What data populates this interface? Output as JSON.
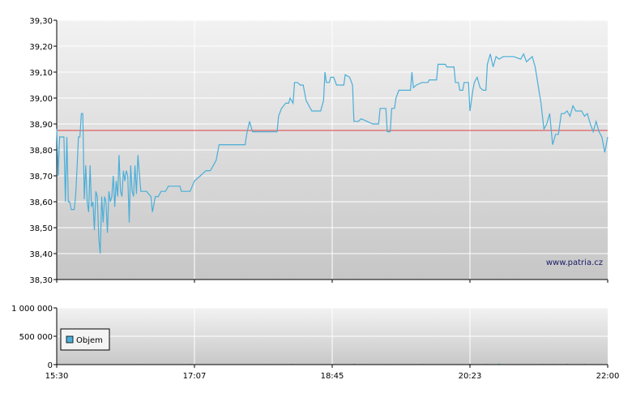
{
  "chart_data": [
    {
      "type": "line",
      "title": "",
      "xlabel": "",
      "ylabel": "",
      "ylim": [
        38.3,
        39.3
      ],
      "y_ticks": [
        "39,30",
        "39,20",
        "39,10",
        "39,00",
        "38,90",
        "38,80",
        "38,70",
        "38,60",
        "38,50",
        "38,40",
        "38,30"
      ],
      "x_ticks": [
        "15:30",
        "17:07",
        "18:45",
        "20:23",
        "22:00"
      ],
      "grid": true,
      "reference_line": {
        "value": 38.875,
        "color": "#e06060"
      },
      "watermark": "www.patria.cz",
      "series": [
        {
          "color": "#4aaed8",
          "points": [
            [
              0,
              38.88
            ],
            [
              1,
              38.7
            ],
            [
              2,
              38.85
            ],
            [
              3,
              38.85
            ],
            [
              5,
              38.85
            ],
            [
              6,
              38.6
            ],
            [
              7,
              38.85
            ],
            [
              8,
              38.6
            ],
            [
              9,
              38.6
            ],
            [
              10,
              38.57
            ],
            [
              12,
              38.57
            ],
            [
              13,
              38.62
            ],
            [
              14,
              38.73
            ],
            [
              15,
              38.85
            ],
            [
              16,
              38.85
            ],
            [
              17,
              38.94
            ],
            [
              18,
              38.94
            ],
            [
              19,
              38.61
            ],
            [
              20,
              38.74
            ],
            [
              21,
              38.6
            ],
            [
              22,
              38.56
            ],
            [
              23,
              38.74
            ],
            [
              24,
              38.58
            ],
            [
              25,
              38.6
            ],
            [
              26,
              38.49
            ],
            [
              27,
              38.64
            ],
            [
              28,
              38.62
            ],
            [
              29,
              38.46
            ],
            [
              30,
              38.4
            ],
            [
              31,
              38.62
            ],
            [
              32,
              38.52
            ],
            [
              33,
              38.62
            ],
            [
              34,
              38.6
            ],
            [
              35,
              38.48
            ],
            [
              36,
              38.64
            ],
            [
              37,
              38.6
            ],
            [
              38,
              38.62
            ],
            [
              39,
              38.7
            ],
            [
              40,
              38.58
            ],
            [
              41,
              38.68
            ],
            [
              42,
              38.62
            ],
            [
              43,
              38.78
            ],
            [
              44,
              38.64
            ],
            [
              45,
              38.62
            ],
            [
              46,
              38.72
            ],
            [
              47,
              38.68
            ],
            [
              48,
              38.72
            ],
            [
              49,
              38.7
            ],
            [
              50,
              38.52
            ],
            [
              51,
              38.74
            ],
            [
              52,
              38.64
            ],
            [
              53,
              38.62
            ],
            [
              54,
              38.74
            ],
            [
              55,
              38.63
            ],
            [
              56,
              38.78
            ],
            [
              58,
              38.64
            ],
            [
              62,
              38.64
            ],
            [
              65,
              38.62
            ],
            [
              66,
              38.56
            ],
            [
              68,
              38.62
            ],
            [
              70,
              38.62
            ],
            [
              72,
              38.64
            ],
            [
              75,
              38.64
            ],
            [
              77,
              38.66
            ],
            [
              85,
              38.66
            ],
            [
              86,
              38.64
            ],
            [
              92,
              38.64
            ],
            [
              95,
              38.68
            ],
            [
              99,
              38.7
            ],
            [
              103,
              38.72
            ],
            [
              106,
              38.72
            ],
            [
              110,
              38.76
            ],
            [
              112,
              38.82
            ],
            [
              130,
              38.82
            ],
            [
              131,
              38.86
            ],
            [
              133,
              38.91
            ],
            [
              135,
              38.87
            ],
            [
              152,
              38.87
            ],
            [
              153,
              38.93
            ],
            [
              155,
              38.96
            ],
            [
              158,
              38.98
            ],
            [
              160,
              38.98
            ],
            [
              161,
              39.0
            ],
            [
              163,
              38.98
            ],
            [
              164,
              39.06
            ],
            [
              166,
              39.06
            ],
            [
              168,
              39.05
            ],
            [
              170,
              39.05
            ],
            [
              172,
              38.99
            ],
            [
              176,
              38.95
            ],
            [
              182,
              38.95
            ],
            [
              184,
              38.99
            ],
            [
              185,
              39.1
            ],
            [
              186,
              39.06
            ],
            [
              188,
              39.06
            ],
            [
              189,
              39.08
            ],
            [
              191,
              39.08
            ],
            [
              193,
              39.05
            ],
            [
              198,
              39.05
            ],
            [
              199,
              39.09
            ],
            [
              202,
              39.08
            ],
            [
              204,
              39.05
            ],
            [
              205,
              38.91
            ],
            [
              208,
              38.91
            ],
            [
              210,
              38.92
            ],
            [
              214,
              38.91
            ],
            [
              218,
              38.9
            ],
            [
              222,
              38.9
            ],
            [
              223,
              38.96
            ],
            [
              227,
              38.96
            ],
            [
              228,
              38.87
            ],
            [
              230,
              38.87
            ],
            [
              231,
              38.96
            ],
            [
              233,
              38.96
            ],
            [
              234,
              39.0
            ],
            [
              236,
              39.03
            ],
            [
              244,
              39.03
            ],
            [
              245,
              39.1
            ],
            [
              246,
              39.04
            ],
            [
              248,
              39.05
            ],
            [
              252,
              39.06
            ],
            [
              256,
              39.06
            ],
            [
              257,
              39.07
            ],
            [
              262,
              39.07
            ],
            [
              263,
              39.13
            ],
            [
              268,
              39.13
            ],
            [
              269,
              39.12
            ],
            [
              274,
              39.12
            ],
            [
              275,
              39.06
            ],
            [
              277,
              39.06
            ],
            [
              278,
              39.03
            ],
            [
              280,
              39.03
            ],
            [
              281,
              39.06
            ],
            [
              284,
              39.06
            ],
            [
              285,
              38.95
            ],
            [
              287,
              39.03
            ],
            [
              288,
              39.06
            ],
            [
              290,
              39.08
            ],
            [
              292,
              39.04
            ],
            [
              294,
              39.03
            ],
            [
              296,
              39.03
            ],
            [
              297,
              39.13
            ],
            [
              299,
              39.17
            ],
            [
              301,
              39.12
            ],
            [
              303,
              39.16
            ],
            [
              305,
              39.15
            ],
            [
              308,
              39.16
            ],
            [
              312,
              39.16
            ],
            [
              315,
              39.16
            ],
            [
              320,
              39.15
            ],
            [
              322,
              39.17
            ],
            [
              324,
              39.14
            ],
            [
              326,
              39.15
            ],
            [
              328,
              39.16
            ],
            [
              330,
              39.12
            ],
            [
              332,
              39.05
            ],
            [
              334,
              38.98
            ],
            [
              336,
              38.88
            ],
            [
              338,
              38.9
            ],
            [
              340,
              38.94
            ],
            [
              342,
              38.82
            ],
            [
              344,
              38.86
            ],
            [
              346,
              38.86
            ],
            [
              348,
              38.94
            ],
            [
              350,
              38.94
            ],
            [
              352,
              38.95
            ],
            [
              354,
              38.93
            ],
            [
              356,
              38.97
            ],
            [
              358,
              38.95
            ],
            [
              362,
              38.95
            ],
            [
              364,
              38.93
            ],
            [
              366,
              38.94
            ],
            [
              368,
              38.9
            ],
            [
              370,
              38.87
            ],
            [
              372,
              38.91
            ],
            [
              374,
              38.87
            ],
            [
              376,
              38.85
            ],
            [
              378,
              38.79
            ],
            [
              380,
              38.85
            ]
          ]
        }
      ]
    },
    {
      "type": "bar",
      "title": "",
      "xlabel": "",
      "ylabel": "",
      "ylim": [
        0,
        1000000
      ],
      "y_ticks": [
        "1 000 000",
        "500 000",
        "0"
      ],
      "x_ticks": [
        "15:30",
        "17:07",
        "18:45",
        "20:23",
        "22:00"
      ],
      "grid": true,
      "legend": {
        "placement": "left",
        "color": "#4aaed8"
      },
      "series": [
        {
          "name": "Objem",
          "color": "#4aaed8",
          "bars": [
            [
              10,
              6000
            ],
            [
              27,
              5000
            ],
            [
              56,
              9000
            ],
            [
              68,
              4000
            ],
            [
              92,
              12000
            ],
            [
              106,
              6000
            ],
            [
              146,
              8000
            ],
            [
              162,
              11000
            ],
            [
              178,
              7000
            ],
            [
              193,
              5000
            ],
            [
              205,
              14000
            ],
            [
              211,
              9000
            ],
            [
              223,
              6000
            ],
            [
              228,
              8000
            ],
            [
              243,
              5000
            ],
            [
              252,
              12000
            ],
            [
              263,
              7000
            ],
            [
              276,
              8000
            ],
            [
              285,
              15000
            ],
            [
              297,
              10000
            ],
            [
              305,
              18000
            ],
            [
              318,
              8000
            ],
            [
              323,
              6000
            ],
            [
              336,
              12000
            ],
            [
              342,
              9000
            ],
            [
              352,
              14000
            ],
            [
              364,
              11000
            ],
            [
              372,
              8000
            ],
            [
              378,
              7000
            ]
          ]
        }
      ]
    }
  ]
}
